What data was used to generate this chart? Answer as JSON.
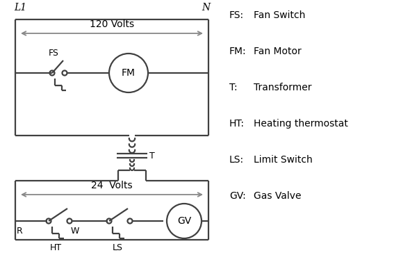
{
  "background_color": "#ffffff",
  "line_color": "#404040",
  "arrow_color": "#888888",
  "text_color": "#000000",
  "legend_items": [
    [
      "FS:",
      "Fan Switch"
    ],
    [
      "FM:",
      "Fan Motor"
    ],
    [
      "T:",
      "Transformer"
    ],
    [
      "HT:",
      "Heating thermostat"
    ],
    [
      "LS:",
      "Limit Switch"
    ],
    [
      "GV:",
      "Gas Valve"
    ]
  ],
  "fig_width": 5.9,
  "fig_height": 4.0,
  "dpi": 100
}
